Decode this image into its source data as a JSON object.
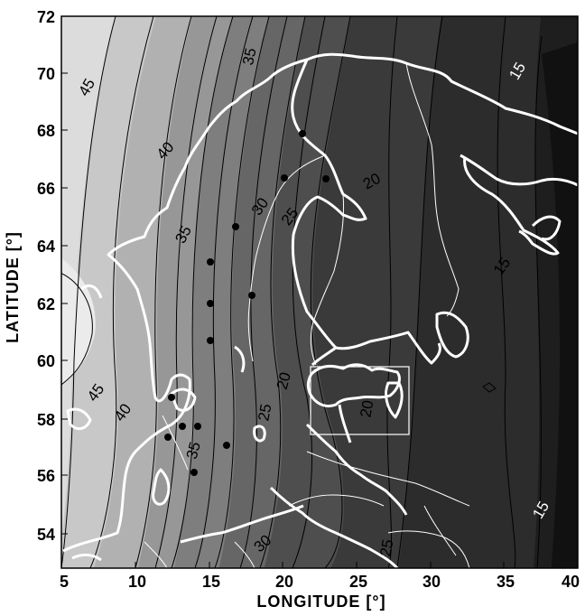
{
  "axes": {
    "xlabel": "LONGITUDE [°]",
    "ylabel": "LATITUDE [°]",
    "xlim": [
      5,
      40
    ],
    "ylim": [
      53,
      72
    ],
    "xticks": [
      "5",
      "10",
      "15",
      "20",
      "25",
      "30",
      "35",
      "40"
    ],
    "yticks": [
      "54",
      "56",
      "58",
      "60",
      "62",
      "64",
      "66",
      "68",
      "70",
      "72"
    ]
  },
  "contour_labels": [
    "45",
    "40",
    "35",
    "35",
    "30",
    "25",
    "20",
    "15",
    "15",
    "45",
    "40",
    "35",
    "25",
    "20",
    "20",
    "30",
    "25",
    "15"
  ],
  "colors": {
    "coast": "#ffffff",
    "contour_line": "#000000",
    "station": "#000000",
    "level_45": "#e6e6e6",
    "level_15": "#1c1c1c"
  }
}
